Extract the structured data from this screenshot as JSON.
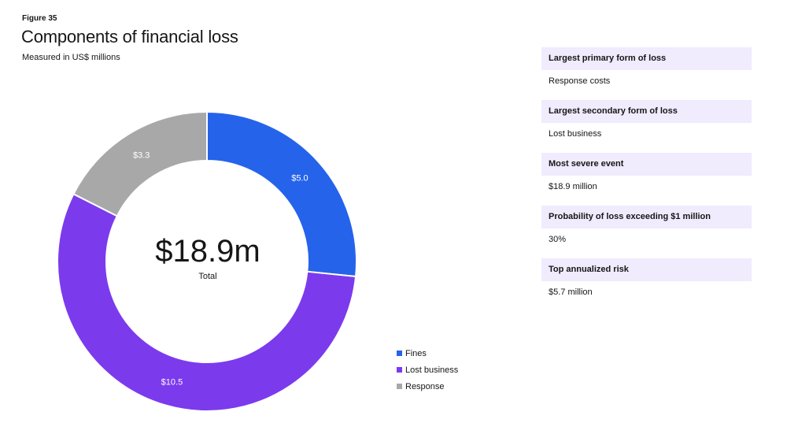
{
  "figure_label": "Figure 35",
  "chart_data": {
    "type": "pie",
    "title": "Components of financial loss",
    "subtitle": "Measured in US$ millions",
    "categories": [
      "Fines",
      "Lost business",
      "Response"
    ],
    "values": [
      5.0,
      10.5,
      3.3
    ],
    "data_labels": [
      "$5.0",
      "$10.5",
      "$3.3"
    ],
    "colors": [
      "#2563eb",
      "#7c3aed",
      "#a8a8a8"
    ],
    "center_value": "$18.9m",
    "center_label": "Total",
    "legend_position": "bottom-right"
  },
  "stats": [
    {
      "label": "Largest primary form of loss",
      "value": "Response costs"
    },
    {
      "label": "Largest secondary form of loss",
      "value": "Lost business"
    },
    {
      "label": "Most severe event",
      "value": "$18.9 million"
    },
    {
      "label": "Probability of loss exceeding $1 million",
      "value": "30%"
    },
    {
      "label": "Top annualized risk",
      "value": "$5.7 million"
    }
  ]
}
